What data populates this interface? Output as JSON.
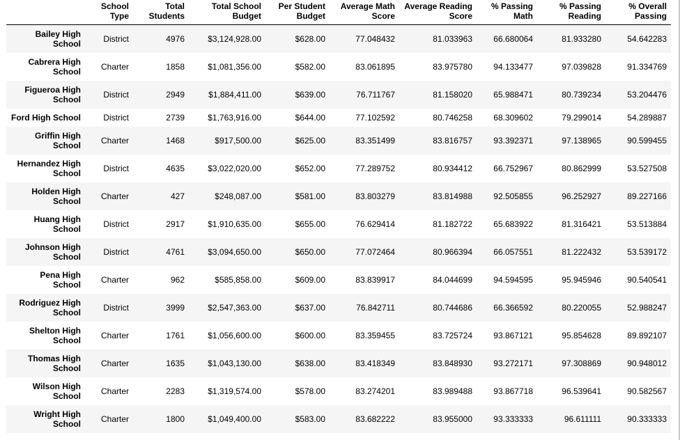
{
  "columns": [
    "School Type",
    "Total Students",
    "Total School Budget",
    "Per Student Budget",
    "Average Math Score",
    "Average Reading Score",
    "% Passing Math",
    "% Passing Reading",
    "% Overall Passing"
  ],
  "rows": [
    {
      "school": "Bailey High School",
      "cells": [
        "District",
        "4976",
        "$3,124,928.00",
        "$628.00",
        "77.048432",
        "81.033963",
        "66.680064",
        "81.933280",
        "54.642283"
      ]
    },
    {
      "school": "Cabrera High School",
      "cells": [
        "Charter",
        "1858",
        "$1,081,356.00",
        "$582.00",
        "83.061895",
        "83.975780",
        "94.133477",
        "97.039828",
        "91.334769"
      ]
    },
    {
      "school": "Figueroa High School",
      "cells": [
        "District",
        "2949",
        "$1,884,411.00",
        "$639.00",
        "76.711767",
        "81.158020",
        "65.988471",
        "80.739234",
        "53.204476"
      ]
    },
    {
      "school": "Ford High School",
      "cells": [
        "District",
        "2739",
        "$1,763,916.00",
        "$644.00",
        "77.102592",
        "80.746258",
        "68.309602",
        "79.299014",
        "54.289887"
      ]
    },
    {
      "school": "Griffin High School",
      "cells": [
        "Charter",
        "1468",
        "$917,500.00",
        "$625.00",
        "83.351499",
        "83.816757",
        "93.392371",
        "97.138965",
        "90.599455"
      ]
    },
    {
      "school": "Hernandez High School",
      "cells": [
        "District",
        "4635",
        "$3,022,020.00",
        "$652.00",
        "77.289752",
        "80.934412",
        "66.752967",
        "80.862999",
        "53.527508"
      ]
    },
    {
      "school": "Holden High School",
      "cells": [
        "Charter",
        "427",
        "$248,087.00",
        "$581.00",
        "83.803279",
        "83.814988",
        "92.505855",
        "96.252927",
        "89.227166"
      ]
    },
    {
      "school": "Huang High School",
      "cells": [
        "District",
        "2917",
        "$1,910,635.00",
        "$655.00",
        "76.629414",
        "81.182722",
        "65.683922",
        "81.316421",
        "53.513884"
      ]
    },
    {
      "school": "Johnson High School",
      "cells": [
        "District",
        "4761",
        "$3,094,650.00",
        "$650.00",
        "77.072464",
        "80.966394",
        "66.057551",
        "81.222432",
        "53.539172"
      ]
    },
    {
      "school": "Pena High School",
      "cells": [
        "Charter",
        "962",
        "$585,858.00",
        "$609.00",
        "83.839917",
        "84.044699",
        "94.594595",
        "95.945946",
        "90.540541"
      ]
    },
    {
      "school": "Rodriguez High School",
      "cells": [
        "District",
        "3999",
        "$2,547,363.00",
        "$637.00",
        "76.842711",
        "80.744686",
        "66.366592",
        "80.220055",
        "52.988247"
      ]
    },
    {
      "school": "Shelton High School",
      "cells": [
        "Charter",
        "1761",
        "$1,056,600.00",
        "$600.00",
        "83.359455",
        "83.725724",
        "93.867121",
        "95.854628",
        "89.892107"
      ]
    },
    {
      "school": "Thomas High School",
      "cells": [
        "Charter",
        "1635",
        "$1,043,130.00",
        "$638.00",
        "83.418349",
        "83.848930",
        "93.272171",
        "97.308869",
        "90.948012"
      ]
    },
    {
      "school": "Wilson High School",
      "cells": [
        "Charter",
        "2283",
        "$1,319,574.00",
        "$578.00",
        "83.274201",
        "83.989488",
        "93.867718",
        "96.539641",
        "90.582567"
      ]
    },
    {
      "school": "Wright High School",
      "cells": [
        "Charter",
        "1800",
        "$1,049,400.00",
        "$583.00",
        "83.682222",
        "83.955000",
        "93.333333",
        "96.611111",
        "90.333333"
      ]
    }
  ]
}
